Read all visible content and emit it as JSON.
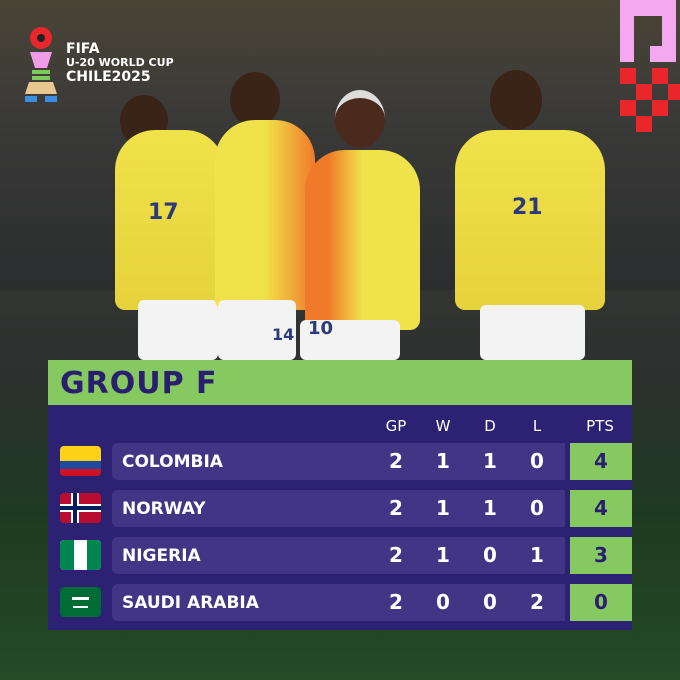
{
  "logo": {
    "line1": "FIFA",
    "line2": "U-20 WORLD CUP",
    "line3": "CHILE2025"
  },
  "photo": {
    "jersey_numbers": [
      "17",
      "14",
      "10",
      "21"
    ]
  },
  "table": {
    "title": "GROUP F",
    "columns": [
      "GP",
      "W",
      "D",
      "L",
      "PTS"
    ],
    "rows": [
      {
        "team": "COLOMBIA",
        "flag": "colombia-flag",
        "gp": "2",
        "w": "1",
        "d": "1",
        "l": "0",
        "pts": "4"
      },
      {
        "team": "NORWAY",
        "flag": "norway-flag",
        "gp": "2",
        "w": "1",
        "d": "1",
        "l": "0",
        "pts": "4"
      },
      {
        "team": "NIGERIA",
        "flag": "nigeria-flag",
        "gp": "2",
        "w": "1",
        "d": "0",
        "l": "1",
        "pts": "3"
      },
      {
        "team": "SAUDI ARABIA",
        "flag": "saudi-arabia-flag",
        "gp": "2",
        "w": "0",
        "d": "0",
        "l": "2",
        "pts": "0"
      }
    ]
  },
  "colors": {
    "header_green": "#86c961",
    "panel_purple": "#2d2173",
    "row_purple": "#433585"
  }
}
